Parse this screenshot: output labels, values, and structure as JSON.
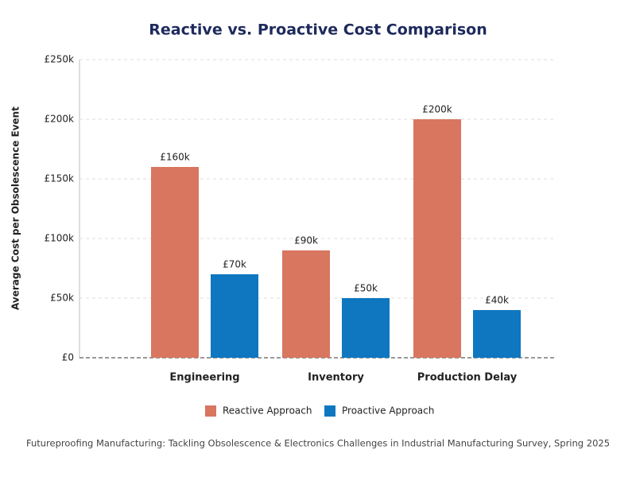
{
  "chart_data": {
    "type": "bar",
    "title": "Reactive vs. Proactive Cost Comparison",
    "y_label": "Average Cost per Obsolescence Event",
    "categories": [
      "Engineering",
      "Inventory",
      "Production Delay"
    ],
    "series": [
      {
        "name": "Reactive Approach",
        "color": "#d87660",
        "values": [
          160,
          90,
          200
        ],
        "value_labels": [
          "£160k",
          "£90k",
          "£200k"
        ]
      },
      {
        "name": "Proactive Approach",
        "color": "#0e77c0",
        "values": [
          70,
          50,
          40
        ],
        "value_labels": [
          "£70k",
          "£50k",
          "£40k"
        ]
      }
    ],
    "ylim": [
      0,
      250
    ],
    "yticks": [
      {
        "value": 0,
        "label": "£0"
      },
      {
        "value": 50,
        "label": "£50k"
      },
      {
        "value": 100,
        "label": "£100k"
      },
      {
        "value": 150,
        "label": "£150k"
      },
      {
        "value": 200,
        "label": "£200k"
      },
      {
        "value": 250,
        "label": "£250k"
      }
    ],
    "grid": true,
    "legend": "bottom",
    "source": "Futureproofing Manufacturing: Tackling Obsolescence & Electronics Challenges in Industrial Manufacturing Survey, Spring 2025"
  }
}
